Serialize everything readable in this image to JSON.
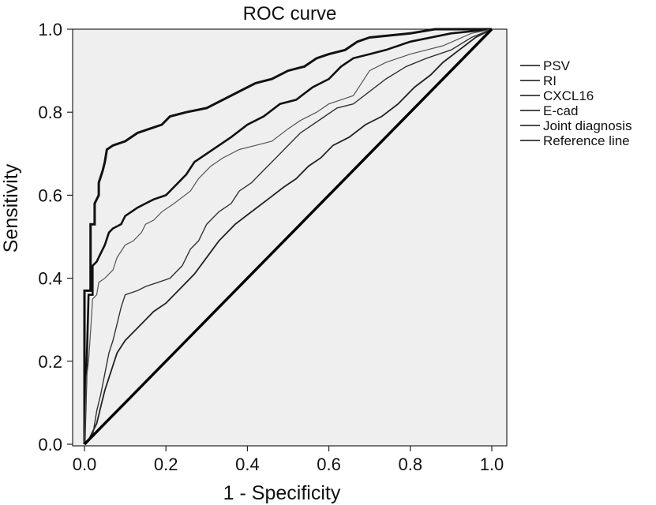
{
  "chart_data": {
    "type": "line",
    "title": "ROC curve",
    "xlabel": "1 - Specificity",
    "ylabel": "Sensitivity",
    "xlim": [
      0,
      1
    ],
    "ylim": [
      0,
      1
    ],
    "x_ticks": [
      "0.0",
      "0.2",
      "0.4",
      "0.6",
      "0.8",
      "1.0"
    ],
    "y_ticks": [
      "0.0",
      "0.2",
      "0.4",
      "0.6",
      "0.8",
      "1.0"
    ],
    "grid": false,
    "legend_position": "right",
    "series": [
      {
        "name": "PSV",
        "color": "#111111",
        "points": [
          [
            0,
            0
          ],
          [
            0,
            0.37
          ],
          [
            0.015,
            0.37
          ],
          [
            0.015,
            0.53
          ],
          [
            0.025,
            0.53
          ],
          [
            0.025,
            0.58
          ],
          [
            0.035,
            0.6
          ],
          [
            0.035,
            0.63
          ],
          [
            0.045,
            0.66
          ],
          [
            0.05,
            0.68
          ],
          [
            0.055,
            0.71
          ],
          [
            0.07,
            0.72
          ],
          [
            0.1,
            0.73
          ],
          [
            0.13,
            0.75
          ],
          [
            0.16,
            0.76
          ],
          [
            0.19,
            0.77
          ],
          [
            0.21,
            0.79
          ],
          [
            0.25,
            0.8
          ],
          [
            0.3,
            0.81
          ],
          [
            0.34,
            0.83
          ],
          [
            0.38,
            0.85
          ],
          [
            0.42,
            0.87
          ],
          [
            0.46,
            0.88
          ],
          [
            0.5,
            0.9
          ],
          [
            0.54,
            0.91
          ],
          [
            0.57,
            0.93
          ],
          [
            0.6,
            0.94
          ],
          [
            0.64,
            0.95
          ],
          [
            0.67,
            0.97
          ],
          [
            0.7,
            0.98
          ],
          [
            0.8,
            0.99
          ],
          [
            0.86,
            1.0
          ],
          [
            1,
            1
          ]
        ]
      },
      {
        "name": "RI",
        "color": "#111111",
        "points": [
          [
            0,
            0
          ],
          [
            0.01,
            0.36
          ],
          [
            0.02,
            0.36
          ],
          [
            0.02,
            0.43
          ],
          [
            0.03,
            0.44
          ],
          [
            0.04,
            0.46
          ],
          [
            0.05,
            0.48
          ],
          [
            0.06,
            0.51
          ],
          [
            0.07,
            0.52
          ],
          [
            0.09,
            0.53
          ],
          [
            0.1,
            0.55
          ],
          [
            0.13,
            0.57
          ],
          [
            0.15,
            0.58
          ],
          [
            0.17,
            0.59
          ],
          [
            0.2,
            0.6
          ],
          [
            0.21,
            0.61
          ],
          [
            0.23,
            0.63
          ],
          [
            0.25,
            0.65
          ],
          [
            0.27,
            0.68
          ],
          [
            0.3,
            0.7
          ],
          [
            0.33,
            0.72
          ],
          [
            0.36,
            0.74
          ],
          [
            0.4,
            0.77
          ],
          [
            0.44,
            0.79
          ],
          [
            0.48,
            0.82
          ],
          [
            0.52,
            0.83
          ],
          [
            0.56,
            0.86
          ],
          [
            0.6,
            0.88
          ],
          [
            0.63,
            0.91
          ],
          [
            0.66,
            0.93
          ],
          [
            0.7,
            0.94
          ],
          [
            0.74,
            0.95
          ],
          [
            0.8,
            0.97
          ],
          [
            0.9,
            0.99
          ],
          [
            1,
            1
          ]
        ]
      },
      {
        "name": "CXCL16",
        "color": "#222222",
        "points": [
          [
            0,
            0
          ],
          [
            0.01,
            0.01
          ],
          [
            0.02,
            0.03
          ],
          [
            0.03,
            0.05
          ],
          [
            0.04,
            0.09
          ],
          [
            0.05,
            0.13
          ],
          [
            0.06,
            0.16
          ],
          [
            0.07,
            0.19
          ],
          [
            0.08,
            0.22
          ],
          [
            0.1,
            0.25
          ],
          [
            0.12,
            0.27
          ],
          [
            0.15,
            0.3
          ],
          [
            0.17,
            0.32
          ],
          [
            0.2,
            0.34
          ],
          [
            0.23,
            0.37
          ],
          [
            0.27,
            0.41
          ],
          [
            0.3,
            0.45
          ],
          [
            0.33,
            0.49
          ],
          [
            0.37,
            0.53
          ],
          [
            0.41,
            0.56
          ],
          [
            0.45,
            0.59
          ],
          [
            0.49,
            0.62
          ],
          [
            0.52,
            0.64
          ],
          [
            0.55,
            0.67
          ],
          [
            0.58,
            0.69
          ],
          [
            0.61,
            0.72
          ],
          [
            0.65,
            0.74
          ],
          [
            0.69,
            0.77
          ],
          [
            0.73,
            0.79
          ],
          [
            0.77,
            0.82
          ],
          [
            0.81,
            0.86
          ],
          [
            0.85,
            0.89
          ],
          [
            0.88,
            0.92
          ],
          [
            0.92,
            0.95
          ],
          [
            0.96,
            0.98
          ],
          [
            1,
            1
          ]
        ]
      },
      {
        "name": "E-cad",
        "color": "#555555",
        "points": [
          [
            0,
            0
          ],
          [
            0.005,
            0.16
          ],
          [
            0.01,
            0.2
          ],
          [
            0.015,
            0.27
          ],
          [
            0.02,
            0.35
          ],
          [
            0.03,
            0.36
          ],
          [
            0.035,
            0.39
          ],
          [
            0.05,
            0.4
          ],
          [
            0.07,
            0.42
          ],
          [
            0.08,
            0.45
          ],
          [
            0.1,
            0.48
          ],
          [
            0.12,
            0.49
          ],
          [
            0.14,
            0.51
          ],
          [
            0.15,
            0.53
          ],
          [
            0.17,
            0.54
          ],
          [
            0.19,
            0.56
          ],
          [
            0.22,
            0.58
          ],
          [
            0.26,
            0.61
          ],
          [
            0.28,
            0.64
          ],
          [
            0.31,
            0.67
          ],
          [
            0.34,
            0.69
          ],
          [
            0.38,
            0.71
          ],
          [
            0.42,
            0.72
          ],
          [
            0.46,
            0.73
          ],
          [
            0.5,
            0.76
          ],
          [
            0.53,
            0.78
          ],
          [
            0.57,
            0.8
          ],
          [
            0.6,
            0.82
          ],
          [
            0.66,
            0.84
          ],
          [
            0.68,
            0.87
          ],
          [
            0.7,
            0.9
          ],
          [
            0.74,
            0.92
          ],
          [
            0.8,
            0.94
          ],
          [
            0.88,
            0.96
          ],
          [
            0.95,
            0.99
          ],
          [
            1,
            1
          ]
        ]
      },
      {
        "name": "Joint diagnosis",
        "color": "#333333",
        "points": [
          [
            0,
            0
          ],
          [
            0.02,
            0.02
          ],
          [
            0.03,
            0.08
          ],
          [
            0.04,
            0.12
          ],
          [
            0.05,
            0.17
          ],
          [
            0.06,
            0.22
          ],
          [
            0.07,
            0.25
          ],
          [
            0.08,
            0.29
          ],
          [
            0.09,
            0.33
          ],
          [
            0.1,
            0.36
          ],
          [
            0.13,
            0.37
          ],
          [
            0.15,
            0.38
          ],
          [
            0.18,
            0.39
          ],
          [
            0.21,
            0.4
          ],
          [
            0.24,
            0.43
          ],
          [
            0.26,
            0.47
          ],
          [
            0.28,
            0.49
          ],
          [
            0.3,
            0.53
          ],
          [
            0.33,
            0.56
          ],
          [
            0.36,
            0.58
          ],
          [
            0.38,
            0.61
          ],
          [
            0.41,
            0.63
          ],
          [
            0.44,
            0.66
          ],
          [
            0.47,
            0.69
          ],
          [
            0.5,
            0.72
          ],
          [
            0.53,
            0.75
          ],
          [
            0.56,
            0.77
          ],
          [
            0.59,
            0.79
          ],
          [
            0.62,
            0.81
          ],
          [
            0.66,
            0.82
          ],
          [
            0.7,
            0.85
          ],
          [
            0.74,
            0.88
          ],
          [
            0.79,
            0.91
          ],
          [
            0.84,
            0.93
          ],
          [
            0.9,
            0.95
          ],
          [
            0.95,
            0.98
          ],
          [
            1,
            1
          ]
        ]
      },
      {
        "name": "Reference line",
        "color": "#000000",
        "points": [
          [
            0,
            0
          ],
          [
            1,
            1
          ]
        ]
      }
    ]
  }
}
